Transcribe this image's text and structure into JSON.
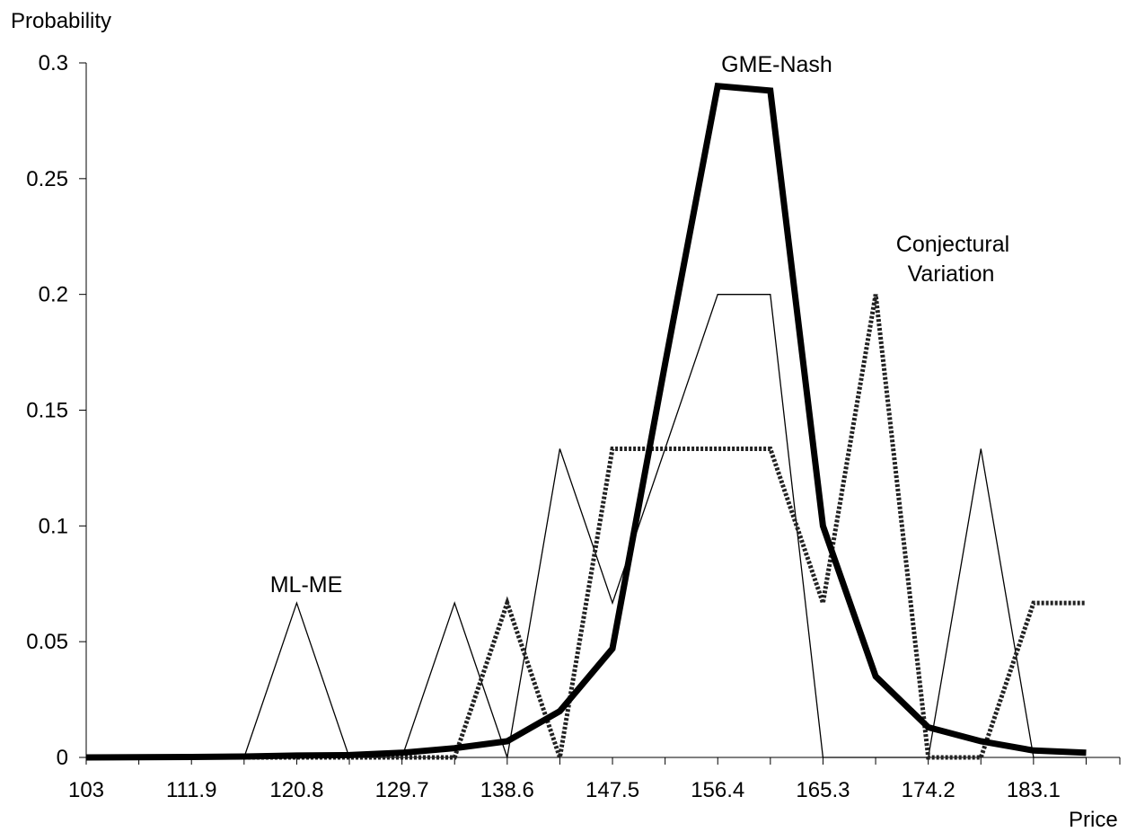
{
  "chart_data": {
    "type": "line",
    "ylabel": "Probability",
    "xlabel": "Price",
    "xlim": [
      103,
      190.4
    ],
    "ylim": [
      0,
      0.3
    ],
    "x_ticks": [
      103,
      111.9,
      120.8,
      129.7,
      138.6,
      147.5,
      156.4,
      165.3,
      174.2,
      183.1
    ],
    "x_tick_labels": [
      "103",
      "111.9",
      "120.8",
      "129.7",
      "138.6",
      "147.5",
      "156.4",
      "165.3",
      "174.2",
      "183.1"
    ],
    "y_ticks": [
      0,
      0.05,
      0.1,
      0.15,
      0.2,
      0.25,
      0.3
    ],
    "y_tick_labels": [
      "0",
      "0.05",
      "0.1",
      "0.15",
      "0.2",
      "0.25",
      "0.3"
    ],
    "grid": false,
    "annotations": {
      "ml_me": "ML-ME",
      "gme_nash": "GME-Nash",
      "conjectural_line1": "Conjectural",
      "conjectural_line2": "Variation"
    },
    "x": [
      103,
      107.45,
      111.9,
      116.35,
      120.8,
      125.25,
      129.7,
      134.15,
      138.6,
      143.05,
      147.5,
      151.95,
      156.4,
      160.85,
      165.3,
      169.75,
      174.2,
      178.65,
      183.1,
      187.55
    ],
    "series": [
      {
        "id": "ml_me",
        "style": "thin",
        "color": "#000000",
        "values": [
          0,
          0,
          0,
          0,
          0.0667,
          0,
          0,
          0.0667,
          0,
          0.1333,
          0.0667,
          0.1333,
          0.2,
          0.2,
          0,
          0,
          0,
          0.1333,
          0,
          0
        ]
      },
      {
        "id": "gme_nash",
        "style": "thick",
        "color": "#000000",
        "values": [
          0,
          0.0001,
          0.0002,
          0.0004,
          0.0008,
          0.001,
          0.002,
          0.004,
          0.007,
          0.02,
          0.047,
          0.17,
          0.29,
          0.288,
          0.1,
          0.035,
          0.013,
          0.007,
          0.003,
          0.002
        ]
      },
      {
        "id": "conjectural_variation",
        "style": "dashed",
        "color": "#222222",
        "values": [
          0,
          0,
          0,
          0,
          0,
          0,
          0,
          0,
          0.0667,
          0,
          0.1333,
          0.1333,
          0.1333,
          0.1333,
          0.0667,
          0.2,
          0,
          0,
          0.0667,
          0.0667
        ]
      }
    ]
  }
}
